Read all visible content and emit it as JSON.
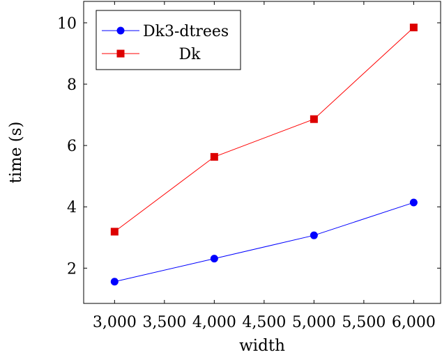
{
  "chart_data": {
    "type": "line",
    "xlabel": "width",
    "ylabel": "time (s)",
    "xlim": [
      2690,
      6270
    ],
    "ylim": [
      0.85,
      10.7
    ],
    "xticks": [
      3000,
      3500,
      4000,
      4500,
      5000,
      5500,
      6000
    ],
    "xtick_labels": [
      "3,000",
      "3,500",
      "4,000",
      "4,500",
      "5,000",
      "5,500",
      "6,000"
    ],
    "yticks": [
      2,
      4,
      6,
      8,
      10
    ],
    "ytick_labels": [
      "2",
      "4",
      "6",
      "8",
      "10"
    ],
    "grid": false,
    "legend_position": "top-left",
    "series": [
      {
        "name": "Dk3-dtrees",
        "color": "#0000ff",
        "marker": "circle",
        "x": [
          3000,
          4000,
          5000,
          6000
        ],
        "y": [
          1.56,
          2.31,
          3.07,
          4.14
        ]
      },
      {
        "name": "Dk",
        "color": "#ff0000",
        "marker": "square",
        "x": [
          3000,
          4000,
          5000,
          6000
        ],
        "y": [
          3.19,
          5.63,
          6.86,
          9.85
        ]
      }
    ]
  }
}
